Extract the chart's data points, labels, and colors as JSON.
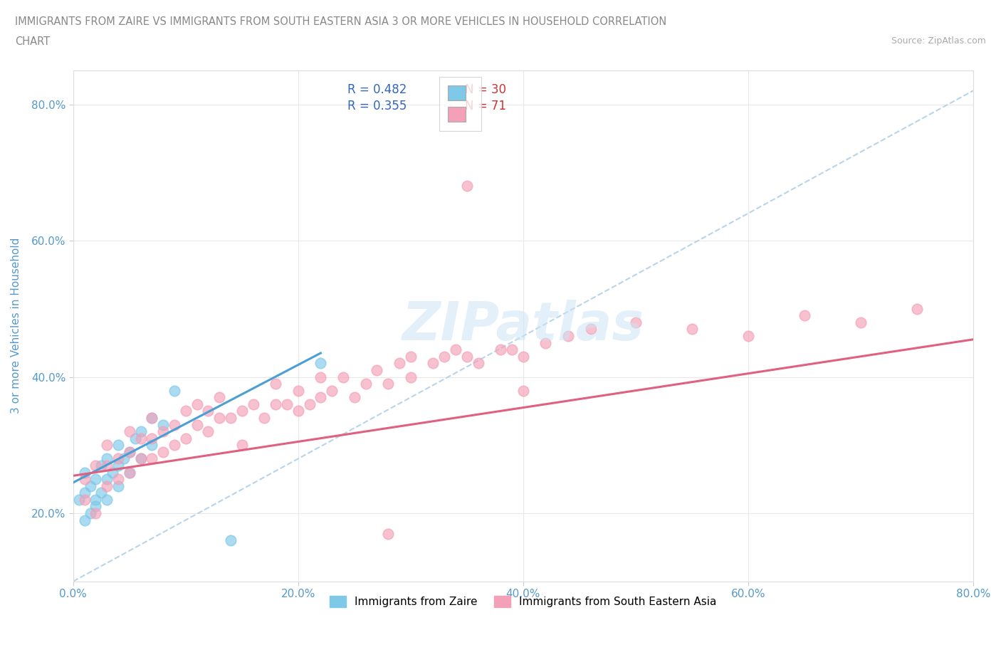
{
  "title_line1": "IMMIGRANTS FROM ZAIRE VS IMMIGRANTS FROM SOUTH EASTERN ASIA 3 OR MORE VEHICLES IN HOUSEHOLD CORRELATION",
  "title_line2": "CHART",
  "source_text": "Source: ZipAtlas.com",
  "ylabel": "3 or more Vehicles in Household",
  "xlim": [
    0.0,
    0.8
  ],
  "ylim": [
    0.1,
    0.85
  ],
  "xticks": [
    0.0,
    0.2,
    0.4,
    0.6,
    0.8
  ],
  "yticks": [
    0.2,
    0.4,
    0.6,
    0.8
  ],
  "xtick_labels": [
    "0.0%",
    "20.0%",
    "40.0%",
    "60.0%",
    "80.0%"
  ],
  "ytick_labels": [
    "20.0%",
    "40.0%",
    "60.0%",
    "80.0%"
  ],
  "watermark": "ZIPatlas",
  "legend_r1": "R = 0.482",
  "legend_n1": "N = 30",
  "legend_r2": "R = 0.355",
  "legend_n2": "N = 71",
  "color_zaire": "#7ec8e8",
  "color_sea": "#f4a0b8",
  "color_zaire_line": "#4a9fd4",
  "color_sea_line": "#e06080",
  "color_dashed_line": "#b0d0e8",
  "tick_label_color": "#5599cc",
  "background_color": "#ffffff",
  "grid_color": "#e8e8e8",
  "zaire_x": [
    0.005,
    0.01,
    0.01,
    0.01,
    0.015,
    0.015,
    0.02,
    0.02,
    0.02,
    0.025,
    0.025,
    0.03,
    0.03,
    0.03,
    0.035,
    0.04,
    0.04,
    0.04,
    0.045,
    0.05,
    0.05,
    0.055,
    0.06,
    0.06,
    0.07,
    0.07,
    0.08,
    0.09,
    0.14,
    0.22
  ],
  "zaire_y": [
    0.22,
    0.19,
    0.23,
    0.26,
    0.2,
    0.24,
    0.21,
    0.25,
    0.22,
    0.23,
    0.27,
    0.22,
    0.25,
    0.28,
    0.26,
    0.24,
    0.27,
    0.3,
    0.28,
    0.26,
    0.29,
    0.31,
    0.28,
    0.32,
    0.3,
    0.34,
    0.33,
    0.38,
    0.16,
    0.42
  ],
  "sea_x": [
    0.01,
    0.01,
    0.02,
    0.02,
    0.03,
    0.03,
    0.03,
    0.04,
    0.04,
    0.05,
    0.05,
    0.05,
    0.06,
    0.06,
    0.07,
    0.07,
    0.07,
    0.08,
    0.08,
    0.09,
    0.09,
    0.1,
    0.1,
    0.11,
    0.11,
    0.12,
    0.12,
    0.13,
    0.13,
    0.14,
    0.15,
    0.15,
    0.16,
    0.17,
    0.18,
    0.18,
    0.19,
    0.2,
    0.2,
    0.21,
    0.22,
    0.22,
    0.23,
    0.24,
    0.25,
    0.26,
    0.27,
    0.28,
    0.29,
    0.3,
    0.3,
    0.32,
    0.33,
    0.34,
    0.35,
    0.36,
    0.38,
    0.39,
    0.4,
    0.42,
    0.44,
    0.46,
    0.5,
    0.55,
    0.6,
    0.65,
    0.7,
    0.75,
    0.35,
    0.4,
    0.28
  ],
  "sea_y": [
    0.22,
    0.25,
    0.2,
    0.27,
    0.24,
    0.27,
    0.3,
    0.25,
    0.28,
    0.26,
    0.29,
    0.32,
    0.28,
    0.31,
    0.28,
    0.31,
    0.34,
    0.29,
    0.32,
    0.3,
    0.33,
    0.31,
    0.35,
    0.33,
    0.36,
    0.32,
    0.35,
    0.34,
    0.37,
    0.34,
    0.35,
    0.3,
    0.36,
    0.34,
    0.36,
    0.39,
    0.36,
    0.35,
    0.38,
    0.36,
    0.37,
    0.4,
    0.38,
    0.4,
    0.37,
    0.39,
    0.41,
    0.39,
    0.42,
    0.4,
    0.43,
    0.42,
    0.43,
    0.44,
    0.43,
    0.42,
    0.44,
    0.44,
    0.43,
    0.45,
    0.46,
    0.47,
    0.48,
    0.47,
    0.46,
    0.49,
    0.48,
    0.5,
    0.68,
    0.38,
    0.17
  ],
  "zaire_line_x": [
    0.0,
    0.22
  ],
  "zaire_line_y": [
    0.245,
    0.435
  ],
  "sea_line_x": [
    0.0,
    0.8
  ],
  "sea_line_y": [
    0.255,
    0.455
  ],
  "diag_line_x": [
    0.0,
    0.8
  ],
  "diag_line_y": [
    0.1,
    0.82
  ]
}
